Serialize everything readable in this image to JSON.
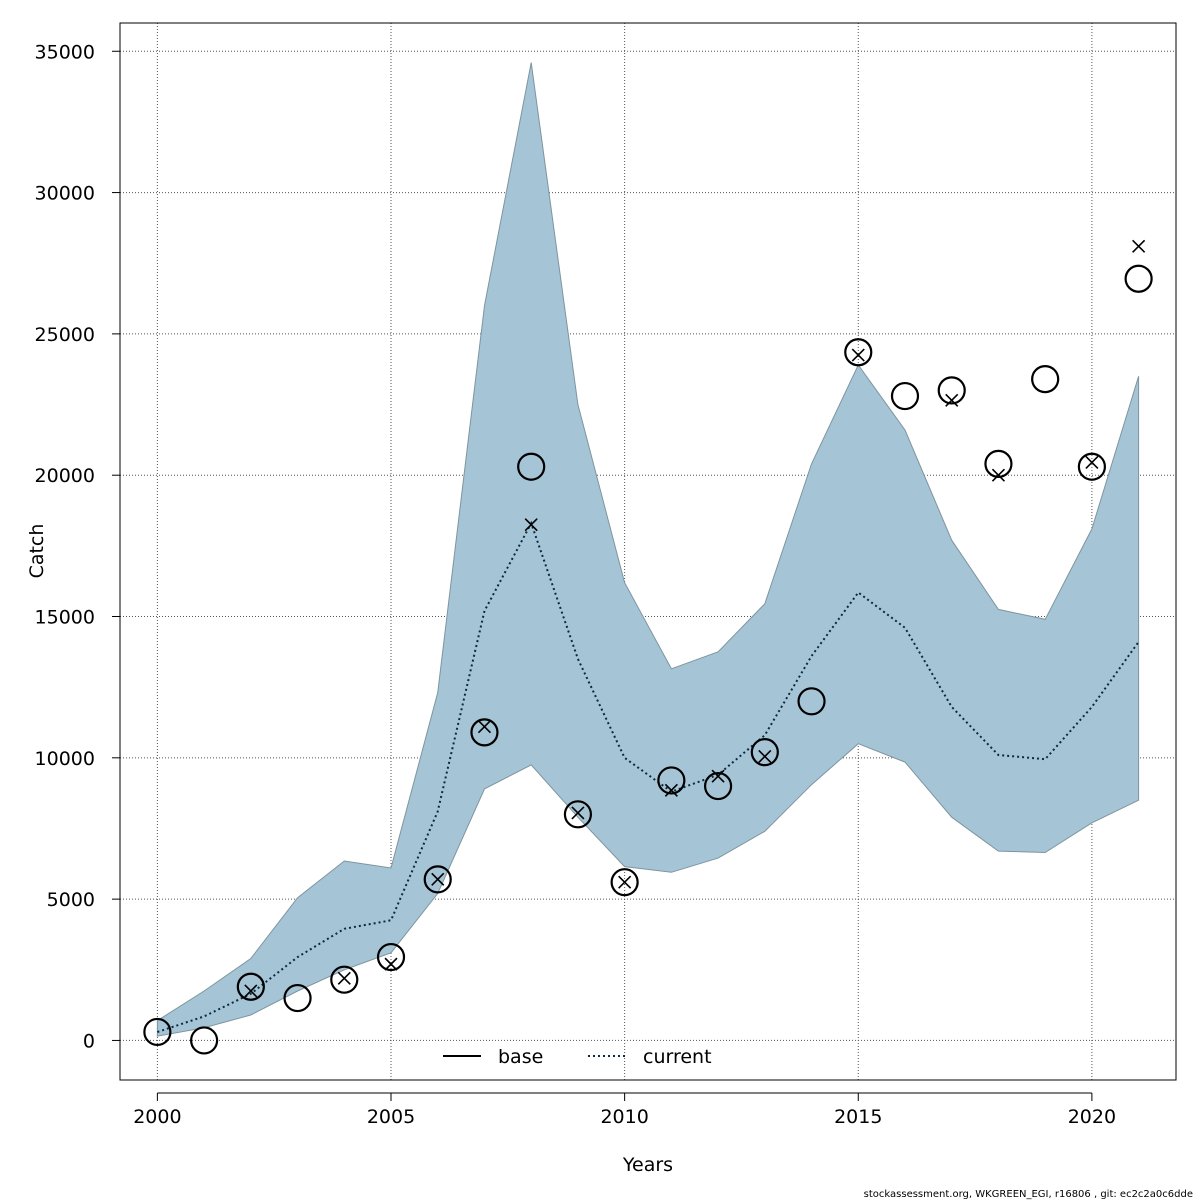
{
  "chart_data": {
    "type": "line",
    "xlabel": "Years",
    "ylabel": "Catch",
    "xlim": [
      1999.2,
      2021.8
    ],
    "ylim": [
      -1400,
      36000
    ],
    "x_ticks": [
      2000,
      2005,
      2010,
      2015,
      2020
    ],
    "y_ticks": [
      0,
      5000,
      10000,
      15000,
      20000,
      25000,
      30000,
      35000
    ],
    "grid": true,
    "legend": {
      "position": "bottom-center",
      "entries": [
        {
          "name": "base",
          "style": "solid"
        },
        {
          "name": "current",
          "style": "dotted"
        }
      ]
    },
    "x": [
      2000,
      2001,
      2002,
      2003,
      2004,
      2005,
      2006,
      2007,
      2008,
      2009,
      2010,
      2011,
      2012,
      2013,
      2014,
      2015,
      2016,
      2017,
      2018,
      2019,
      2020,
      2021
    ],
    "series": [
      {
        "name": "current (estimate)",
        "role": "line",
        "values": [
          300,
          850,
          1650,
          2950,
          3950,
          4250,
          8100,
          15200,
          18300,
          13500,
          10000,
          8800,
          9400,
          10800,
          13600,
          15850,
          14600,
          11800,
          10100,
          9950,
          11800,
          14100
        ]
      },
      {
        "name": "confidence band lower",
        "role": "band-lower",
        "values": [
          150,
          450,
          900,
          1750,
          2500,
          3100,
          5200,
          8900,
          9750,
          7900,
          6150,
          5950,
          6450,
          7400,
          9050,
          10500,
          9850,
          7900,
          6700,
          6650,
          7700,
          8500
        ]
      },
      {
        "name": "confidence band upper",
        "role": "band-upper",
        "values": [
          700,
          1750,
          2900,
          5050,
          6350,
          6100,
          12300,
          26000,
          34600,
          22500,
          16200,
          13150,
          13750,
          15450,
          20400,
          23900,
          21600,
          17700,
          15250,
          14900,
          18100,
          23500
        ]
      },
      {
        "name": "observed catch",
        "role": "circle-marker",
        "values": [
          300,
          0,
          1900,
          1500,
          2150,
          2950,
          5700,
          10900,
          20300,
          8000,
          5600,
          9200,
          9000,
          10200,
          12000,
          24350,
          22800,
          23000,
          20400,
          23400,
          20300,
          26950
        ]
      },
      {
        "name": "predicted catch",
        "role": "cross-marker",
        "x": [
          2002,
          2004,
          2005,
          2006,
          2007,
          2008,
          2009,
          2010,
          2011,
          2012,
          2013,
          2015,
          2017,
          2018,
          2020,
          2021
        ],
        "values": [
          1750,
          2200,
          2700,
          5700,
          11100,
          18250,
          8050,
          5600,
          8850,
          9350,
          10050,
          24250,
          22650,
          20000,
          20450,
          28100
        ]
      }
    ],
    "colors": {
      "band_fill": "#a5c4d5",
      "band_edge": "#7e959f",
      "line": "#0a2a40",
      "marker": "#000000",
      "grid": "#555555"
    },
    "footer": "stockassessment.org, WKGREEN_EGI, r16806 , git: ec2c2a0c6dde"
  }
}
